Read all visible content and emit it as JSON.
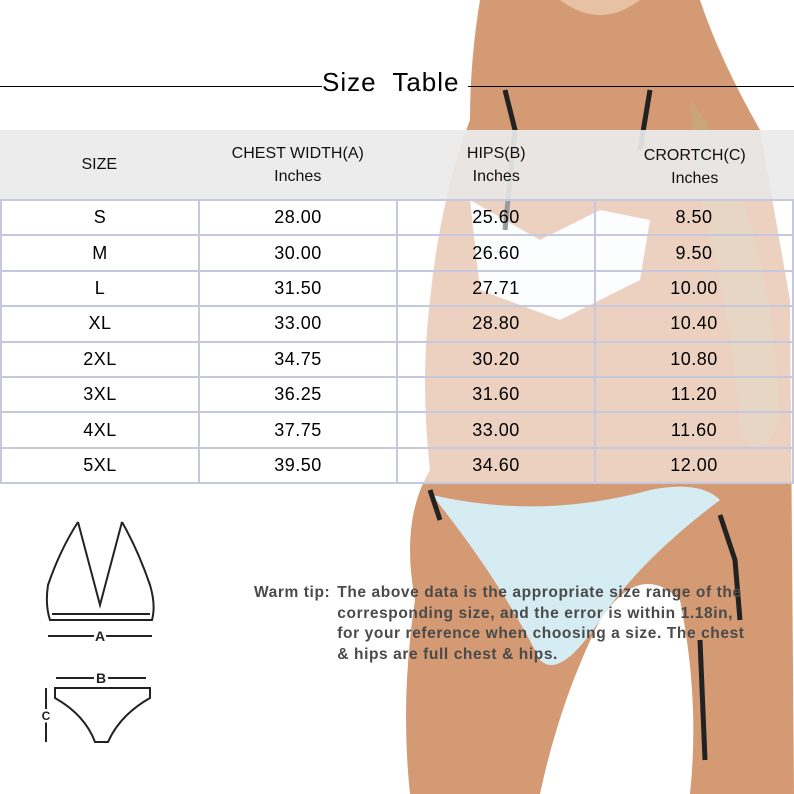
{
  "title": "Size Table",
  "table": {
    "headers": [
      {
        "label": "SIZE",
        "unit": ""
      },
      {
        "label": "CHEST WIDTH(A)",
        "unit": "Inches"
      },
      {
        "label": "HIPS(B)",
        "unit": "Inches"
      },
      {
        "label": "CRORTCH(C)",
        "unit": "Inches"
      }
    ],
    "rows": [
      [
        "S",
        "28.00",
        "25.60",
        "8.50"
      ],
      [
        "M",
        "30.00",
        "26.60",
        "9.50"
      ],
      [
        "L",
        "31.50",
        "27.71",
        "10.00"
      ],
      [
        "XL",
        "33.00",
        "28.80",
        "10.40"
      ],
      [
        "2XL",
        "34.75",
        "30.20",
        "10.80"
      ],
      [
        "3XL",
        "36.25",
        "31.60",
        "11.20"
      ],
      [
        "4XL",
        "37.75",
        "33.00",
        "11.60"
      ],
      [
        "5XL",
        "39.50",
        "34.60",
        "12.00"
      ]
    ]
  },
  "tip": {
    "label": "Warm tip:",
    "text": "The above data is the appropriate size range of the corresponding size, and the error is within 1.18in, for your reference when choosing a size. The chest & hips are full chest & hips."
  },
  "diagram": {
    "top_label": "A",
    "bottom_width_label": "B",
    "bottom_height_label": "C"
  },
  "colors": {
    "border": "#c6c9de",
    "header_bg": "#ebebeb",
    "tip_text": "#4a4a4a",
    "skin": "#c98a62",
    "bottoms": "#d6ecf3"
  }
}
